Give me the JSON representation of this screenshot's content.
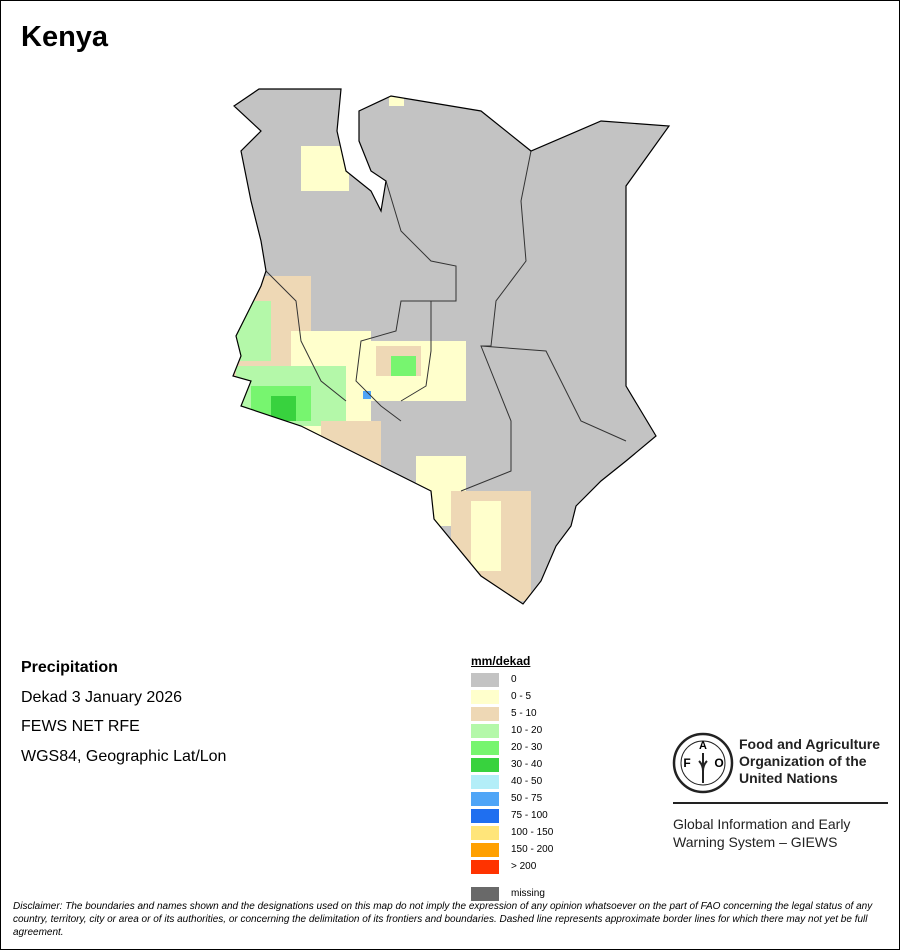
{
  "title": "Kenya",
  "info": {
    "variable": "Precipitation",
    "period": "Dekad 3 January 2026",
    "source": "FEWS NET RFE",
    "projection": "WGS84, Geographic Lat/Lon"
  },
  "legend": {
    "title": "mm/dekad",
    "items": [
      {
        "label": "0",
        "color": "#c3c3c3"
      },
      {
        "label": "0 - 5",
        "color": "#ffffcc"
      },
      {
        "label": "5 - 10",
        "color": "#eed8b5"
      },
      {
        "label": "10 - 20",
        "color": "#b4f8a9"
      },
      {
        "label": "20 - 30",
        "color": "#77f56f"
      },
      {
        "label": "30 - 40",
        "color": "#38d23e"
      },
      {
        "label": "40 - 50",
        "color": "#b3eef8"
      },
      {
        "label": "50 - 75",
        "color": "#4fa5f7"
      },
      {
        "label": "75 - 100",
        "color": "#1f6ff0"
      },
      {
        "label": "100 - 150",
        "color": "#ffe57a"
      },
      {
        "label": "150 - 200",
        "color": "#ffa000"
      },
      {
        "label": "> 200",
        "color": "#ff3300"
      }
    ],
    "missing": {
      "label": "missing",
      "color": "#696969"
    }
  },
  "logo": {
    "letters": "FAO",
    "motto": "FIAT PANIS",
    "name": "Food and Agriculture Organization of the United Nations",
    "name_lines": [
      "Food and Agriculture",
      "Organization of the",
      "United Nations"
    ],
    "system_lines": [
      "Global Information and Early",
      "Warning System – GIEWS"
    ]
  },
  "disclaimer": "Disclaimer: The boundaries and names shown and the designations used on this map do not imply the expression of any opinion whatsoever on the part of FAO concerning the legal status of any country, territory, city or area or of its authorities, or concerning the delimitation of its frontiers and boundaries. Dashed line represents approximate border lines for which there may not yet be full agreement."
}
